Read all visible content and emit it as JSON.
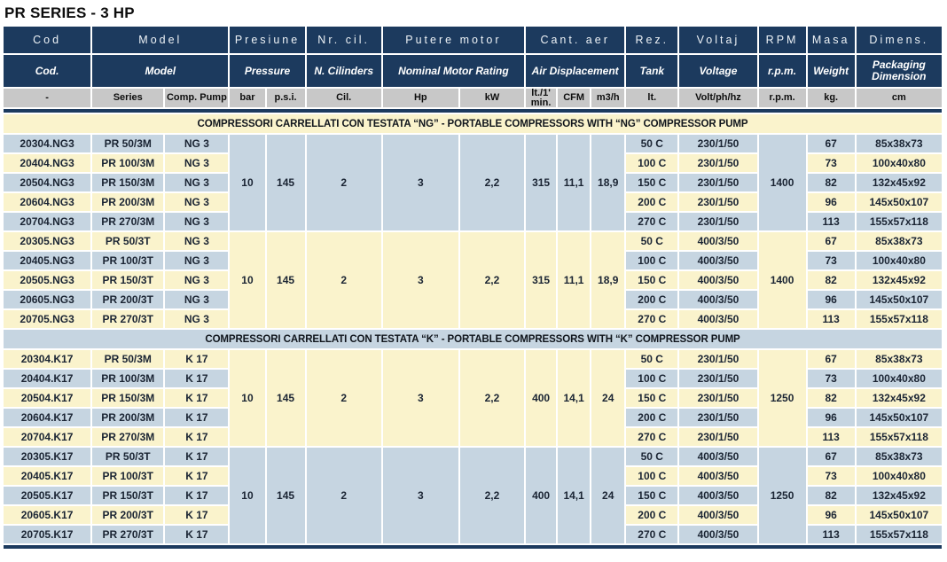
{
  "page_title": "PR SERIES - 3 HP",
  "colors": {
    "header_navy": "#1c3a5e",
    "units_silver": "#c8c8c8",
    "row_yellow": "#faf3cc",
    "row_blue": "#c6d5e1",
    "data_text": "#1a2433"
  },
  "header": {
    "row1": [
      "Cod",
      "Model",
      "Presiune",
      "Nr. cil.",
      "Putere motor",
      "Cant. aer",
      "Rez.",
      "Voltaj",
      "RPM",
      "Masa",
      "Dimens."
    ],
    "row2": [
      "Cod.",
      "Model",
      "Pressure",
      "N. Cilinders",
      "Nominal Motor Rating",
      "Air Displacement",
      "Tank",
      "Voltage",
      "r.p.m.",
      "Weight",
      "Packaging Dimension"
    ],
    "units": [
      "-",
      "Series",
      "Comp. Pump",
      "bar",
      "p.s.i.",
      "Cil.",
      "Hp",
      "kW",
      "lt./1' min.",
      "CFM",
      "m3/h",
      "lt.",
      "Volt/ph/hz",
      "r.p.m.",
      "kg.",
      "cm"
    ]
  },
  "sections": [
    {
      "title": "COMPRESSORI CARRELLATI CON TESTATA “NG” - PORTABLE COMPRESSORS WITH “NG” COMPRESSOR PUMP",
      "band_tone": "yellow",
      "blocks": [
        {
          "merged": {
            "bar": "10",
            "psi": "145",
            "cil": "2",
            "hp": "3",
            "kw": "2,2",
            "lt_min": "315",
            "cfm": "11,1",
            "m3h": "18,9",
            "rpm": "1400"
          },
          "merged_tone": "blue",
          "first_tone": "blue",
          "rows": [
            {
              "cod": "20304.NG3",
              "series": "PR 50/3M",
              "pump": "NG 3",
              "tank": "50 C",
              "voltage": "230/1/50",
              "kg": "67",
              "cm": "85x38x73"
            },
            {
              "cod": "20404.NG3",
              "series": "PR 100/3M",
              "pump": "NG 3",
              "tank": "100 C",
              "voltage": "230/1/50",
              "kg": "73",
              "cm": "100x40x80"
            },
            {
              "cod": "20504.NG3",
              "series": "PR 150/3M",
              "pump": "NG 3",
              "tank": "150 C",
              "voltage": "230/1/50",
              "kg": "82",
              "cm": "132x45x92"
            },
            {
              "cod": "20604.NG3",
              "series": "PR 200/3M",
              "pump": "NG 3",
              "tank": "200 C",
              "voltage": "230/1/50",
              "kg": "96",
              "cm": "145x50x107"
            },
            {
              "cod": "20704.NG3",
              "series": "PR 270/3M",
              "pump": "NG 3",
              "tank": "270 C",
              "voltage": "230/1/50",
              "kg": "113",
              "cm": "155x57x118"
            }
          ]
        },
        {
          "merged": {
            "bar": "10",
            "psi": "145",
            "cil": "2",
            "hp": "3",
            "kw": "2,2",
            "lt_min": "315",
            "cfm": "11,1",
            "m3h": "18,9",
            "rpm": "1400"
          },
          "merged_tone": "yellow",
          "first_tone": "yellow",
          "rows": [
            {
              "cod": "20305.NG3",
              "series": "PR 50/3T",
              "pump": "NG 3",
              "tank": "50 C",
              "voltage": "400/3/50",
              "kg": "67",
              "cm": "85x38x73"
            },
            {
              "cod": "20405.NG3",
              "series": "PR 100/3T",
              "pump": "NG 3",
              "tank": "100 C",
              "voltage": "400/3/50",
              "kg": "73",
              "cm": "100x40x80"
            },
            {
              "cod": "20505.NG3",
              "series": "PR 150/3T",
              "pump": "NG 3",
              "tank": "150 C",
              "voltage": "400/3/50",
              "kg": "82",
              "cm": "132x45x92"
            },
            {
              "cod": "20605.NG3",
              "series": "PR 200/3T",
              "pump": "NG 3",
              "tank": "200 C",
              "voltage": "400/3/50",
              "kg": "96",
              "cm": "145x50x107"
            },
            {
              "cod": "20705.NG3",
              "series": "PR 270/3T",
              "pump": "NG 3",
              "tank": "270 C",
              "voltage": "400/3/50",
              "kg": "113",
              "cm": "155x57x118"
            }
          ]
        }
      ]
    },
    {
      "title": "COMPRESSORI CARRELLATI CON TESTATA “K” - PORTABLE COMPRESSORS WITH “K” COMPRESSOR PUMP",
      "band_tone": "blue",
      "blocks": [
        {
          "merged": {
            "bar": "10",
            "psi": "145",
            "cil": "2",
            "hp": "3",
            "kw": "2,2",
            "lt_min": "400",
            "cfm": "14,1",
            "m3h": "24",
            "rpm": "1250"
          },
          "merged_tone": "yellow",
          "first_tone": "yellow",
          "rows": [
            {
              "cod": "20304.K17",
              "series": "PR 50/3M",
              "pump": "K 17",
              "tank": "50 C",
              "voltage": "230/1/50",
              "kg": "67",
              "cm": "85x38x73"
            },
            {
              "cod": "20404.K17",
              "series": "PR 100/3M",
              "pump": "K 17",
              "tank": "100 C",
              "voltage": "230/1/50",
              "kg": "73",
              "cm": "100x40x80"
            },
            {
              "cod": "20504.K17",
              "series": "PR 150/3M",
              "pump": "K 17",
              "tank": "150 C",
              "voltage": "230/1/50",
              "kg": "82",
              "cm": "132x45x92"
            },
            {
              "cod": "20604.K17",
              "series": "PR 200/3M",
              "pump": "K 17",
              "tank": "200 C",
              "voltage": "230/1/50",
              "kg": "96",
              "cm": "145x50x107"
            },
            {
              "cod": "20704.K17",
              "series": "PR 270/3M",
              "pump": "K 17",
              "tank": "270 C",
              "voltage": "230/1/50",
              "kg": "113",
              "cm": "155x57x118"
            }
          ]
        },
        {
          "merged": {
            "bar": "10",
            "psi": "145",
            "cil": "2",
            "hp": "3",
            "kw": "2,2",
            "lt_min": "400",
            "cfm": "14,1",
            "m3h": "24",
            "rpm": "1250"
          },
          "merged_tone": "blue",
          "first_tone": "blue",
          "rows": [
            {
              "cod": "20305.K17",
              "series": "PR 50/3T",
              "pump": "K 17",
              "tank": "50 C",
              "voltage": "400/3/50",
              "kg": "67",
              "cm": "85x38x73"
            },
            {
              "cod": "20405.K17",
              "series": "PR 100/3T",
              "pump": "K 17",
              "tank": "100 C",
              "voltage": "400/3/50",
              "kg": "73",
              "cm": "100x40x80"
            },
            {
              "cod": "20505.K17",
              "series": "PR 150/3T",
              "pump": "K 17",
              "tank": "150 C",
              "voltage": "400/3/50",
              "kg": "82",
              "cm": "132x45x92"
            },
            {
              "cod": "20605.K17",
              "series": "PR 200/3T",
              "pump": "K 17",
              "tank": "200 C",
              "voltage": "400/3/50",
              "kg": "96",
              "cm": "145x50x107"
            },
            {
              "cod": "20705.K17",
              "series": "PR 270/3T",
              "pump": "K 17",
              "tank": "270 C",
              "voltage": "400/3/50",
              "kg": "113",
              "cm": "155x57x118"
            }
          ]
        }
      ]
    }
  ]
}
